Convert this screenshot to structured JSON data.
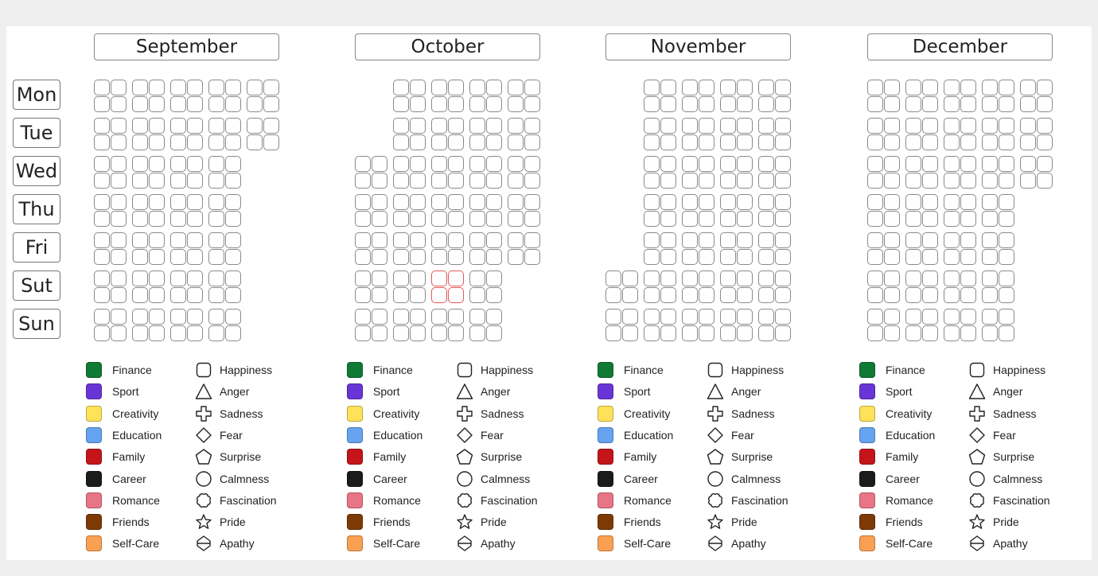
{
  "days": [
    "Mon",
    "Tue",
    "Wed",
    "Thu",
    "Fri",
    "Sut",
    "Sun"
  ],
  "months": [
    {
      "name": "September",
      "days_in_month": 30,
      "start_weekday": 0
    },
    {
      "name": "October",
      "days_in_month": 31,
      "start_weekday": 2,
      "highlight_day": 18
    },
    {
      "name": "November",
      "days_in_month": 30,
      "start_weekday": 5
    },
    {
      "name": "December",
      "days_in_month": 31,
      "start_weekday": 0
    }
  ],
  "categories": [
    {
      "label": "Finance",
      "color": "#0f7a33"
    },
    {
      "label": "Sport",
      "color": "#6a35d6"
    },
    {
      "label": "Creativity",
      "color": "#fde25a"
    },
    {
      "label": "Education",
      "color": "#66a3f0"
    },
    {
      "label": "Family",
      "color": "#c4151b"
    },
    {
      "label": "Career",
      "color": "#1b1b1b"
    },
    {
      "label": "Romance",
      "color": "#e87585"
    },
    {
      "label": "Friends",
      "color": "#7e3a05"
    },
    {
      "label": "Self-Care",
      "color": "#f9a053"
    }
  ],
  "emotions": [
    {
      "label": "Happiness",
      "icon": "rounded-square-icon"
    },
    {
      "label": "Anger",
      "icon": "triangle-icon"
    },
    {
      "label": "Sadness",
      "icon": "cross-icon"
    },
    {
      "label": "Fear",
      "icon": "diamond-icon"
    },
    {
      "label": "Surprise",
      "icon": "pentagon-icon"
    },
    {
      "label": "Calmness",
      "icon": "circle-icon"
    },
    {
      "label": "Fascination",
      "icon": "cloud-icon"
    },
    {
      "label": "Pride",
      "icon": "star-icon"
    },
    {
      "label": "Apathy",
      "icon": "double-arrow-icon"
    }
  ]
}
